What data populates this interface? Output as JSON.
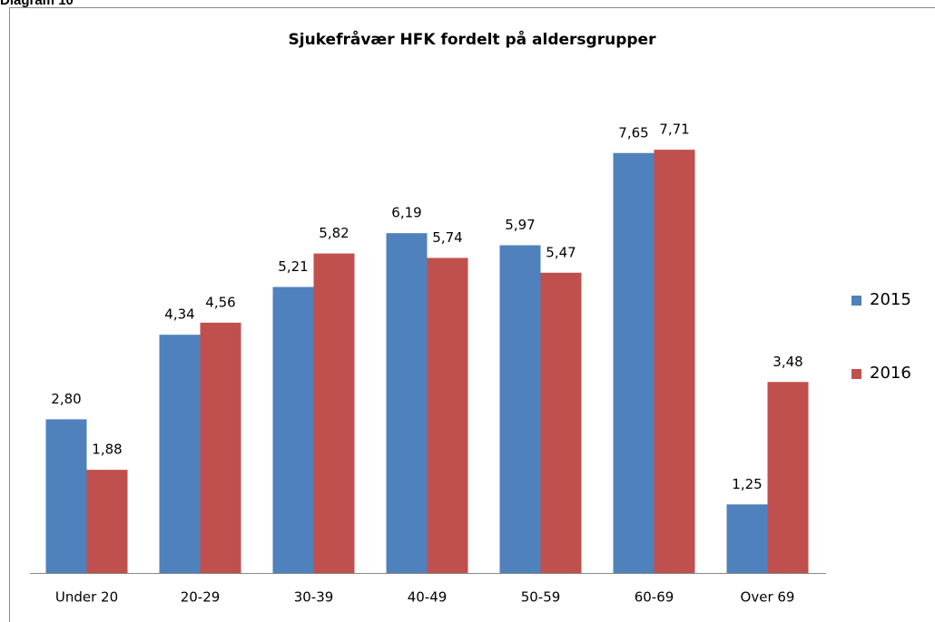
{
  "caption": "Diagram 10",
  "chart_data": {
    "type": "bar",
    "title": "Sjukefråvær HFK fordelt på aldersgrupper",
    "categories": [
      "Under 20",
      "20-29",
      "30-39",
      "40-49",
      "50-59",
      "60-69",
      "Over 69"
    ],
    "series": [
      {
        "name": "2015",
        "color": "#4f81bd",
        "values": [
          2.8,
          4.34,
          5.21,
          6.19,
          5.97,
          7.65,
          1.25
        ],
        "value_labels": [
          "2,80",
          "4,34",
          "5,21",
          "6,19",
          "5,97",
          "7,65",
          "1,25"
        ]
      },
      {
        "name": "2016",
        "color": "#c0504d",
        "values": [
          1.88,
          4.56,
          5.82,
          5.74,
          5.47,
          7.71,
          3.48
        ],
        "value_labels": [
          "1,88",
          "4,56",
          "5,82",
          "5,74",
          "5,47",
          "7,71",
          "3,48"
        ]
      }
    ],
    "ylim": [
      0,
      9
    ],
    "legend": "right",
    "grid": false
  }
}
